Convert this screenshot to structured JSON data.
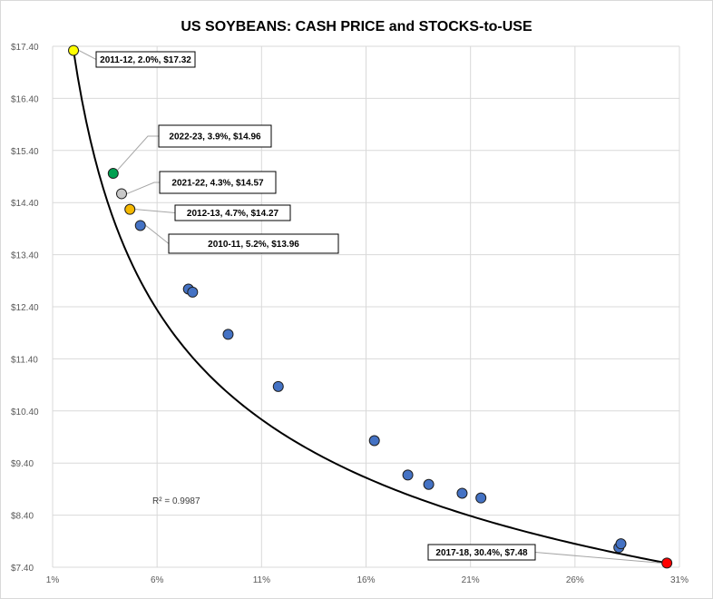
{
  "chart_data": {
    "type": "scatter",
    "title": "US SOYBEANS: CASH PRICE and STOCKS-to-USE",
    "xlim": [
      1,
      31
    ],
    "ylim": [
      7.4,
      17.4
    ],
    "x_ticks": [
      {
        "value": 1,
        "label": "1%"
      },
      {
        "value": 6,
        "label": "6%"
      },
      {
        "value": 11,
        "label": "11%"
      },
      {
        "value": 16,
        "label": "16%"
      },
      {
        "value": 21,
        "label": "21%"
      },
      {
        "value": 26,
        "label": "26%"
      },
      {
        "value": 31,
        "label": "31%"
      }
    ],
    "y_ticks": [
      {
        "value": 17.4,
        "label": "$17.40"
      },
      {
        "value": 16.4,
        "label": "$16.40"
      },
      {
        "value": 15.4,
        "label": "$15.40"
      },
      {
        "value": 14.4,
        "label": "$14.40"
      },
      {
        "value": 13.4,
        "label": "$13.40"
      },
      {
        "value": 12.4,
        "label": "$12.40"
      },
      {
        "value": 11.4,
        "label": "$11.40"
      },
      {
        "value": 10.4,
        "label": "$10.40"
      },
      {
        "value": 9.4,
        "label": "$9.40"
      },
      {
        "value": 8.4,
        "label": "$8.40"
      },
      {
        "value": 7.4,
        "label": "$7.40"
      }
    ],
    "grid": true,
    "legend": false,
    "r_squared_label": "R² = 0.9987",
    "trendline": {
      "type": "power",
      "color": "#000000"
    },
    "points": [
      {
        "x": 2.0,
        "y": 17.32,
        "color": "#ffff00",
        "label": "2011-12, 2.0%, $17.32"
      },
      {
        "x": 3.9,
        "y": 14.96,
        "color": "#00a050",
        "label": "2022-23, 3.9%, $14.96"
      },
      {
        "x": 4.3,
        "y": 14.57,
        "color": "#c8c8c8",
        "label": "2021-22, 4.3%, $14.57"
      },
      {
        "x": 4.7,
        "y": 14.27,
        "color": "#f5b800",
        "label": "2012-13, 4.7%, $14.27"
      },
      {
        "x": 5.2,
        "y": 13.96,
        "color": "#4472c4",
        "label": "2010-11, 5.2%, $13.96"
      },
      {
        "x": 7.5,
        "y": 12.74,
        "color": "#4472c4"
      },
      {
        "x": 7.7,
        "y": 12.68,
        "color": "#4472c4"
      },
      {
        "x": 9.4,
        "y": 11.87,
        "color": "#4472c4"
      },
      {
        "x": 11.8,
        "y": 10.87,
        "color": "#4472c4"
      },
      {
        "x": 16.4,
        "y": 9.83,
        "color": "#4472c4"
      },
      {
        "x": 18.0,
        "y": 9.17,
        "color": "#4472c4"
      },
      {
        "x": 19.0,
        "y": 8.99,
        "color": "#4472c4"
      },
      {
        "x": 20.6,
        "y": 8.82,
        "color": "#4472c4"
      },
      {
        "x": 21.5,
        "y": 8.73,
        "color": "#4472c4"
      },
      {
        "x": 28.1,
        "y": 7.78,
        "color": "#4472c4"
      },
      {
        "x": 28.2,
        "y": 7.85,
        "color": "#4472c4"
      },
      {
        "x": 30.4,
        "y": 7.48,
        "color": "#ff0000",
        "label": "2017-18, 30.4%, $7.48"
      }
    ]
  }
}
